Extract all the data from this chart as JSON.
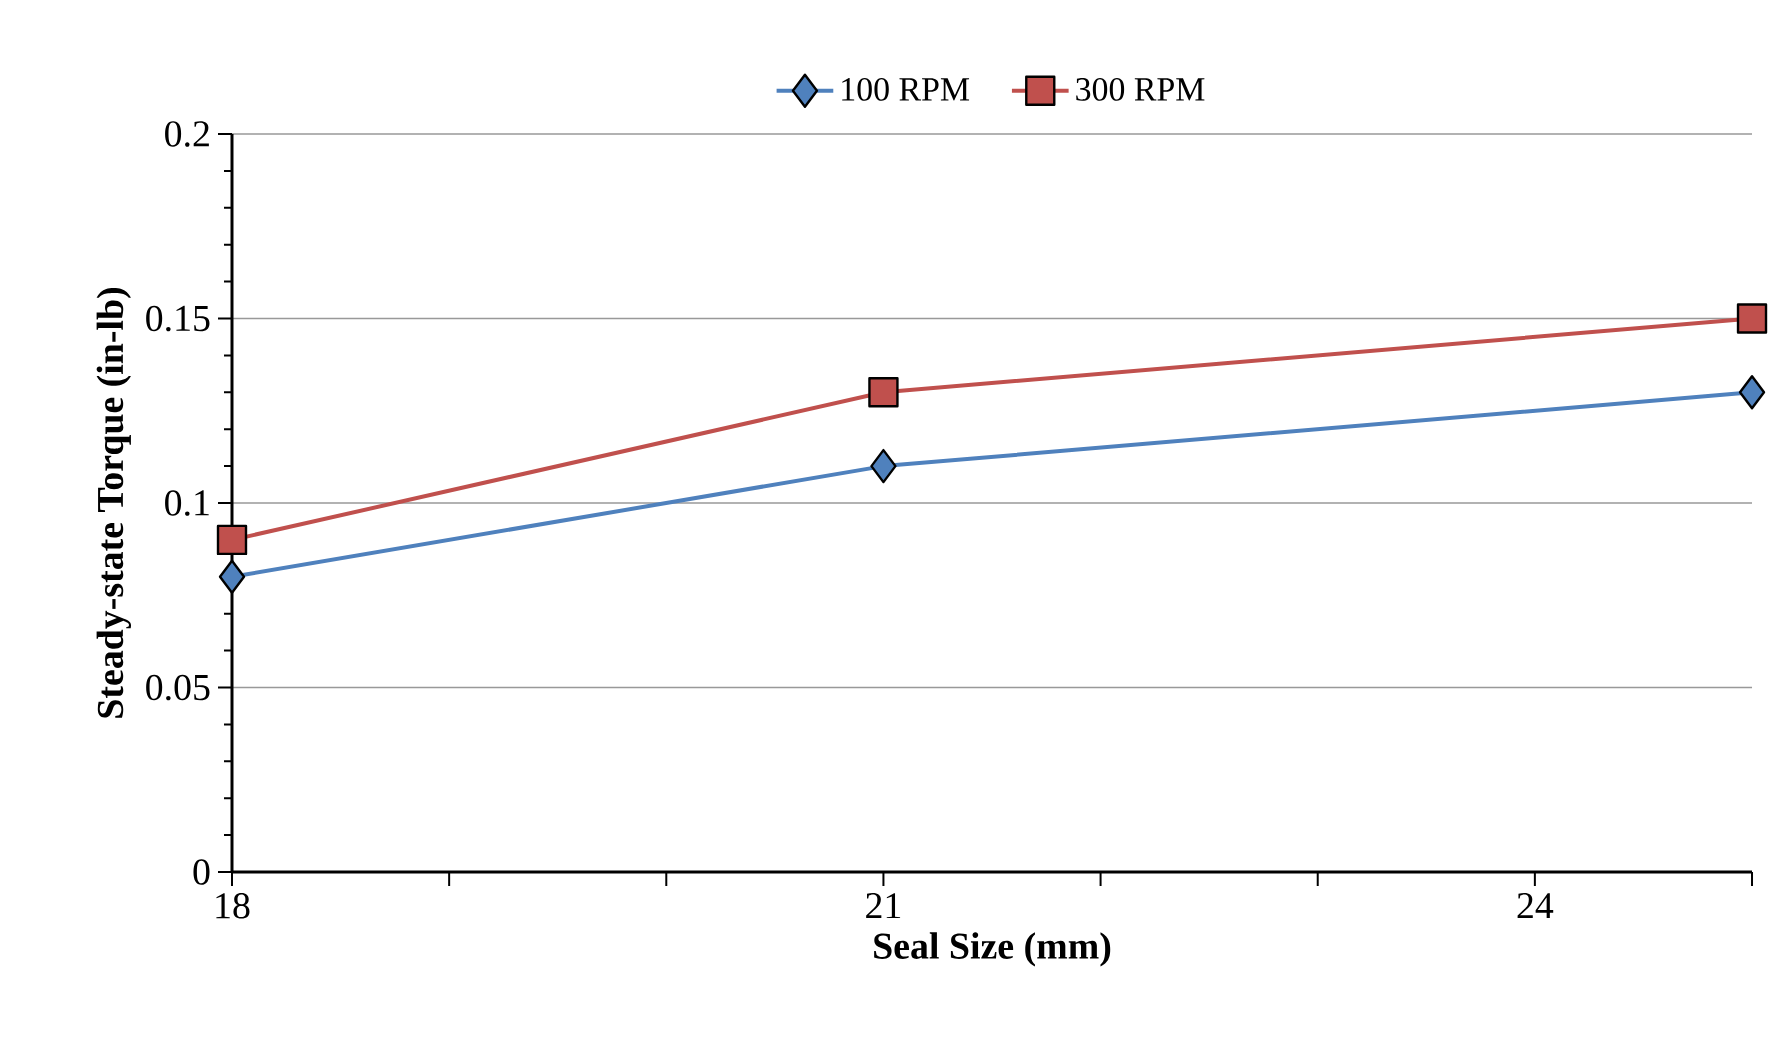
{
  "chart_data": {
    "type": "line",
    "xlabel": "Seal Size (mm)",
    "ylabel": "Steady-state Torque (in-lb)",
    "xlim": [
      18,
      25
    ],
    "xticks": [
      18,
      {
        "value": 19,
        "label": null
      },
      {
        "value": 20,
        "label": null
      },
      21,
      {
        "value": 22,
        "label": null
      },
      {
        "value": 23,
        "label": null
      },
      24,
      {
        "value": 25,
        "label": null
      }
    ],
    "ylim": [
      0,
      0.2
    ],
    "yticks": [
      0,
      0.05,
      0.1,
      0.15,
      0.2
    ],
    "grid": "y",
    "legend": "top",
    "series": [
      {
        "name": "100 RPM",
        "color": "#4f81bd",
        "marker": "diamond",
        "x": [
          18,
          21,
          25
        ],
        "values": [
          0.08,
          0.11,
          0.13
        ]
      },
      {
        "name": "300 RPM",
        "color": "#c0504d",
        "marker": "square",
        "x": [
          18,
          21,
          25
        ],
        "values": [
          0.09,
          0.13,
          0.15
        ]
      }
    ]
  }
}
